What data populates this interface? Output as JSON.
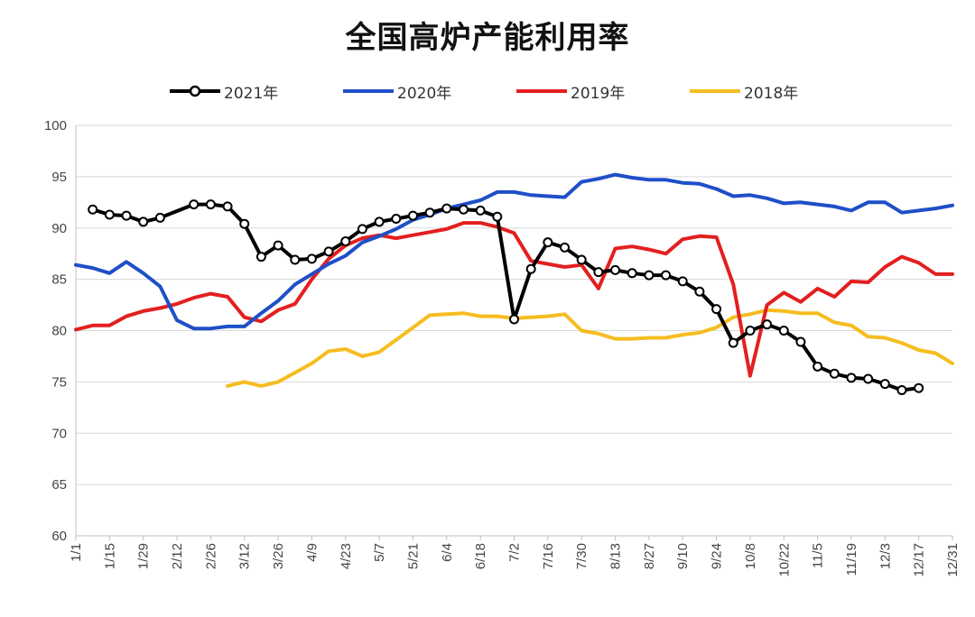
{
  "chart_data": {
    "type": "line",
    "title": "全国高炉产能利用率",
    "xlabel": "",
    "ylabel": "",
    "ylim": [
      60,
      100
    ],
    "yticks": [
      100,
      95,
      90,
      85,
      80,
      75,
      70,
      65,
      60
    ],
    "grid": "horizontal",
    "legend_position": "top",
    "x_tick_labels": [
      "1/1",
      "1/15",
      "1/29",
      "2/12",
      "2/26",
      "3/12",
      "3/26",
      "4/9",
      "4/23",
      "5/7",
      "5/21",
      "6/4",
      "6/18",
      "7/2",
      "7/16",
      "7/30",
      "8/13",
      "8/27",
      "9/10",
      "9/24",
      "10/8",
      "10/22",
      "11/5",
      "11/19",
      "12/3",
      "12/17",
      "12/31"
    ],
    "series": [
      {
        "name": "2021年",
        "color": "#000000",
        "marker": "circle",
        "points": [
          [
            8,
            91.8
          ],
          [
            15,
            91.3
          ],
          [
            22,
            91.2
          ],
          [
            29,
            90.6
          ],
          [
            36,
            91.0
          ],
          [
            50,
            92.3
          ],
          [
            57,
            92.3
          ],
          [
            64,
            92.1
          ],
          [
            71,
            90.4
          ],
          [
            78,
            87.2
          ],
          [
            85,
            88.3
          ],
          [
            92,
            86.9
          ],
          [
            99,
            87.0
          ],
          [
            106,
            87.7
          ],
          [
            113,
            88.7
          ],
          [
            120,
            89.9
          ],
          [
            127,
            90.6
          ],
          [
            134,
            90.9
          ],
          [
            141,
            91.2
          ],
          [
            148,
            91.5
          ],
          [
            155,
            91.9
          ],
          [
            162,
            91.8
          ],
          [
            169,
            91.7
          ],
          [
            176,
            91.1
          ],
          [
            183,
            81.1
          ],
          [
            190,
            86.0
          ],
          [
            197,
            88.6
          ],
          [
            204,
            88.1
          ],
          [
            211,
            86.9
          ],
          [
            218,
            85.7
          ],
          [
            225,
            85.9
          ],
          [
            232,
            85.6
          ],
          [
            239,
            85.4
          ],
          [
            246,
            85.4
          ],
          [
            253,
            84.8
          ],
          [
            260,
            83.8
          ],
          [
            267,
            82.1
          ],
          [
            274,
            78.8
          ],
          [
            281,
            80.0
          ],
          [
            288,
            80.6
          ],
          [
            295,
            80.0
          ],
          [
            302,
            78.9
          ],
          [
            309,
            76.5
          ],
          [
            316,
            75.8
          ],
          [
            323,
            75.4
          ],
          [
            330,
            75.3
          ],
          [
            337,
            74.8
          ],
          [
            344,
            74.2
          ],
          [
            351,
            74.4
          ]
        ]
      },
      {
        "name": "2020年",
        "color": "#1f4fc8",
        "marker": "none",
        "points": [
          [
            1,
            86.4
          ],
          [
            8,
            86.1
          ],
          [
            15,
            85.6
          ],
          [
            22,
            86.7
          ],
          [
            29,
            85.6
          ],
          [
            36,
            84.3
          ],
          [
            43,
            81.0
          ],
          [
            50,
            80.2
          ],
          [
            57,
            80.2
          ],
          [
            64,
            80.4
          ],
          [
            71,
            80.4
          ],
          [
            78,
            81.7
          ],
          [
            85,
            82.9
          ],
          [
            92,
            84.5
          ],
          [
            99,
            85.5
          ],
          [
            106,
            86.5
          ],
          [
            113,
            87.3
          ],
          [
            120,
            88.6
          ],
          [
            127,
            89.2
          ],
          [
            134,
            89.9
          ],
          [
            141,
            90.8
          ],
          [
            148,
            91.3
          ],
          [
            155,
            91.9
          ],
          [
            162,
            92.3
          ],
          [
            169,
            92.7
          ],
          [
            176,
            93.5
          ],
          [
            183,
            93.5
          ],
          [
            190,
            93.2
          ],
          [
            197,
            93.1
          ],
          [
            204,
            93.0
          ],
          [
            211,
            94.5
          ],
          [
            218,
            94.8
          ],
          [
            225,
            95.2
          ],
          [
            232,
            94.9
          ],
          [
            239,
            94.7
          ],
          [
            246,
            94.7
          ],
          [
            253,
            94.4
          ],
          [
            260,
            94.3
          ],
          [
            267,
            93.8
          ],
          [
            274,
            93.1
          ],
          [
            281,
            93.2
          ],
          [
            288,
            92.9
          ],
          [
            295,
            92.4
          ],
          [
            302,
            92.5
          ],
          [
            309,
            92.3
          ],
          [
            316,
            92.1
          ],
          [
            323,
            91.7
          ],
          [
            330,
            92.5
          ],
          [
            337,
            92.5
          ],
          [
            344,
            91.5
          ],
          [
            351,
            91.7
          ],
          [
            358,
            91.9
          ],
          [
            365,
            92.2
          ]
        ]
      },
      {
        "name": "2019年",
        "color": "#e31f1f",
        "marker": "none",
        "points": [
          [
            1,
            80.1
          ],
          [
            8,
            80.5
          ],
          [
            15,
            80.5
          ],
          [
            22,
            81.4
          ],
          [
            29,
            81.9
          ],
          [
            36,
            82.2
          ],
          [
            43,
            82.6
          ],
          [
            50,
            83.2
          ],
          [
            57,
            83.6
          ],
          [
            64,
            83.3
          ],
          [
            71,
            81.3
          ],
          [
            78,
            80.9
          ],
          [
            85,
            82.0
          ],
          [
            92,
            82.6
          ],
          [
            99,
            85.0
          ],
          [
            106,
            87.0
          ],
          [
            113,
            88.3
          ],
          [
            120,
            89.0
          ],
          [
            127,
            89.3
          ],
          [
            134,
            89.0
          ],
          [
            141,
            89.3
          ],
          [
            148,
            89.6
          ],
          [
            155,
            89.9
          ],
          [
            162,
            90.5
          ],
          [
            169,
            90.5
          ],
          [
            176,
            90.1
          ],
          [
            183,
            89.5
          ],
          [
            190,
            86.8
          ],
          [
            197,
            86.5
          ],
          [
            204,
            86.2
          ],
          [
            211,
            86.4
          ],
          [
            218,
            84.1
          ],
          [
            225,
            88.0
          ],
          [
            232,
            88.2
          ],
          [
            239,
            87.9
          ],
          [
            246,
            87.5
          ],
          [
            253,
            88.9
          ],
          [
            260,
            89.2
          ],
          [
            267,
            89.1
          ],
          [
            274,
            84.5
          ],
          [
            281,
            75.6
          ],
          [
            288,
            82.5
          ],
          [
            295,
            83.7
          ],
          [
            302,
            82.8
          ],
          [
            309,
            84.1
          ],
          [
            316,
            83.3
          ],
          [
            323,
            84.8
          ],
          [
            330,
            84.7
          ],
          [
            337,
            86.2
          ],
          [
            344,
            87.2
          ],
          [
            351,
            86.6
          ],
          [
            358,
            85.5
          ],
          [
            365,
            85.5
          ]
        ]
      },
      {
        "name": "2018年",
        "color": "#f5bd1f",
        "marker": "none",
        "points": [
          [
            64,
            74.6
          ],
          [
            71,
            75.0
          ],
          [
            78,
            74.6
          ],
          [
            85,
            75.0
          ],
          [
            92,
            75.9
          ],
          [
            99,
            76.8
          ],
          [
            106,
            78.0
          ],
          [
            113,
            78.2
          ],
          [
            120,
            77.5
          ],
          [
            127,
            77.9
          ],
          [
            134,
            79.1
          ],
          [
            141,
            80.3
          ],
          [
            148,
            81.5
          ],
          [
            155,
            81.6
          ],
          [
            162,
            81.7
          ],
          [
            169,
            81.4
          ],
          [
            176,
            81.4
          ],
          [
            183,
            81.2
          ],
          [
            190,
            81.3
          ],
          [
            197,
            81.4
          ],
          [
            204,
            81.6
          ],
          [
            211,
            80.0
          ],
          [
            218,
            79.7
          ],
          [
            225,
            79.2
          ],
          [
            232,
            79.2
          ],
          [
            239,
            79.3
          ],
          [
            246,
            79.3
          ],
          [
            253,
            79.6
          ],
          [
            260,
            79.8
          ],
          [
            267,
            80.3
          ],
          [
            274,
            81.3
          ],
          [
            281,
            81.6
          ],
          [
            288,
            82.0
          ],
          [
            295,
            81.9
          ],
          [
            302,
            81.7
          ],
          [
            309,
            81.7
          ],
          [
            316,
            80.8
          ],
          [
            323,
            80.5
          ],
          [
            330,
            79.4
          ],
          [
            337,
            79.3
          ],
          [
            344,
            78.8
          ],
          [
            351,
            78.1
          ],
          [
            358,
            77.8
          ],
          [
            365,
            76.8
          ]
        ]
      }
    ]
  }
}
